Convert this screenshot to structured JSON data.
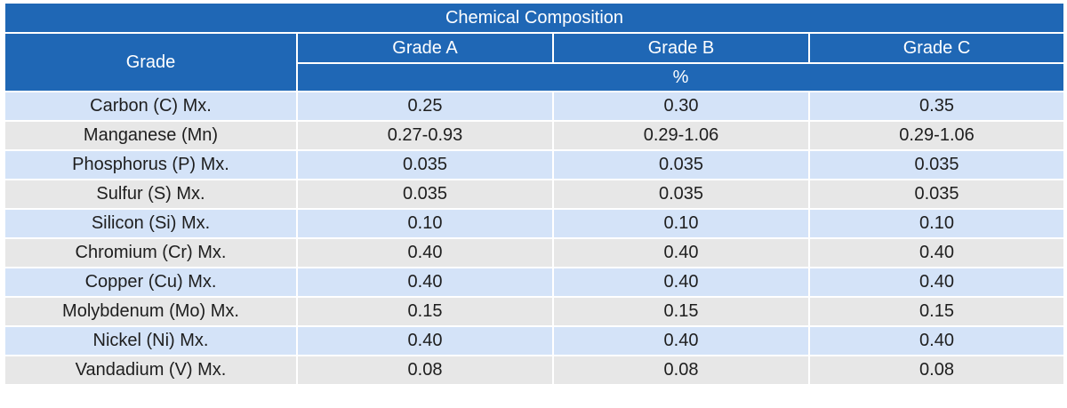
{
  "table": {
    "title": "Chemical Composition",
    "row_header": "Grade",
    "grades": [
      "Grade A",
      "Grade B",
      "Grade C"
    ],
    "unit": "%",
    "rows": [
      {
        "element": "Carbon (C) Mx.",
        "values": [
          "0.25",
          "0.30",
          "0.35"
        ]
      },
      {
        "element": "Manganese (Mn)",
        "values": [
          "0.27-0.93",
          "0.29-1.06",
          "0.29-1.06"
        ]
      },
      {
        "element": "Phosphorus (P) Mx.",
        "values": [
          "0.035",
          "0.035",
          "0.035"
        ]
      },
      {
        "element": "Sulfur (S) Mx.",
        "values": [
          "0.035",
          "0.035",
          "0.035"
        ]
      },
      {
        "element": "Silicon (Si) Mx.",
        "values": [
          "0.10",
          "0.10",
          "0.10"
        ]
      },
      {
        "element": "Chromium (Cr) Mx.",
        "values": [
          "0.40",
          "0.40",
          "0.40"
        ]
      },
      {
        "element": "Copper (Cu) Mx.",
        "values": [
          "0.40",
          "0.40",
          "0.40"
        ]
      },
      {
        "element": "Molybdenum (Mo) Mx.",
        "values": [
          "0.15",
          "0.15",
          "0.15"
        ]
      },
      {
        "element": "Nickel (Ni) Mx.",
        "values": [
          "0.40",
          "0.40",
          "0.40"
        ]
      },
      {
        "element": "Vandadium (V) Mx.",
        "values": [
          "0.08",
          "0.08",
          "0.08"
        ]
      }
    ]
  },
  "colors": {
    "header_background": "#1f67b5",
    "header_text": "#ffffff",
    "row_odd_background": "#d4e3f8",
    "row_even_background": "#e7e7e7",
    "body_text": "#1e1e1e"
  }
}
